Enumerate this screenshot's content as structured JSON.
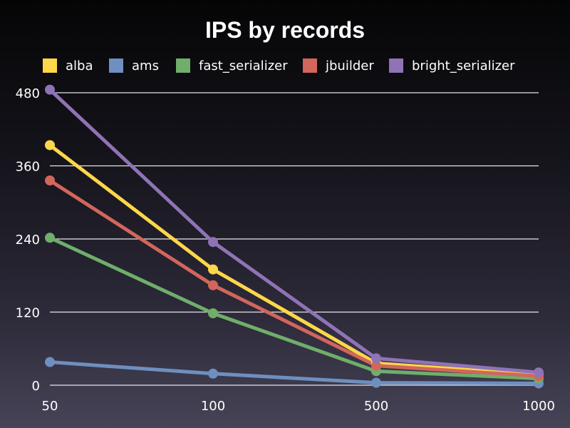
{
  "chart_data": {
    "type": "line",
    "title": "IPS by records",
    "xlabel": "",
    "ylabel": "",
    "categories": [
      "50",
      "100",
      "500",
      "1000"
    ],
    "y_ticks": [
      0,
      120,
      240,
      360,
      480
    ],
    "ylim": [
      0,
      480
    ],
    "grid": true,
    "legend_position": "top",
    "series": [
      {
        "name": "alba",
        "color": "#fdd74a",
        "values": [
          394,
          190,
          36,
          17
        ]
      },
      {
        "name": "ams",
        "color": "#6e8fbf",
        "values": [
          38,
          19,
          4,
          3
        ]
      },
      {
        "name": "fast_serializer",
        "color": "#6fae6b",
        "values": [
          242,
          118,
          23,
          11
        ]
      },
      {
        "name": "jbuilder",
        "color": "#d2665c",
        "values": [
          336,
          164,
          32,
          15
        ]
      },
      {
        "name": "bright_serializer",
        "color": "#8f73b6",
        "values": [
          485,
          235,
          44,
          21
        ]
      }
    ]
  }
}
